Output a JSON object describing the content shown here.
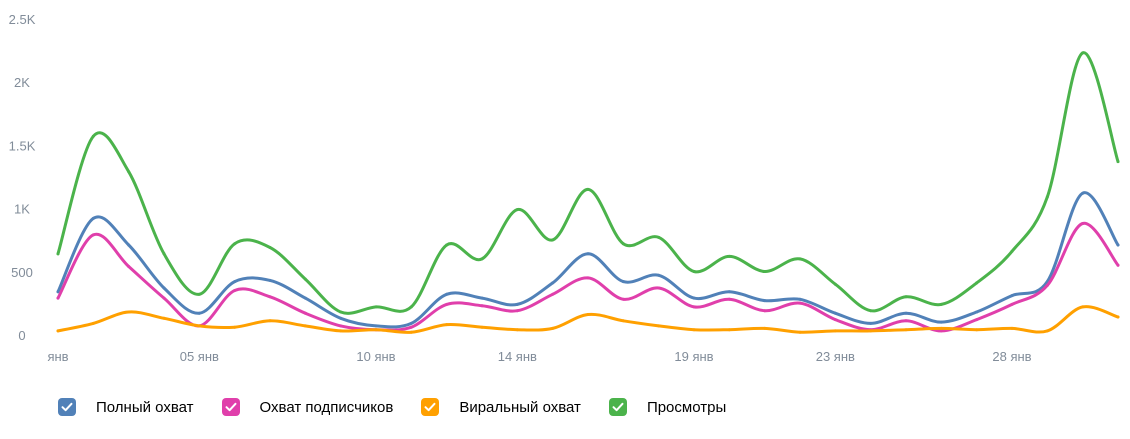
{
  "chart_data": {
    "type": "line",
    "x": [
      "01 янв",
      "02 янв",
      "03 янв",
      "04 янв",
      "05 янв",
      "06 янв",
      "07 янв",
      "08 янв",
      "09 янв",
      "10 янв",
      "11 янв",
      "12 янв",
      "13 янв",
      "14 янв",
      "15 янв",
      "16 янв",
      "17 янв",
      "18 янв",
      "19 янв",
      "20 янв",
      "21 янв",
      "22 янв",
      "23 янв",
      "24 янв",
      "25 янв",
      "26 янв",
      "27 янв",
      "28 янв",
      "29 янв",
      "30 янв",
      "31 янв"
    ],
    "x_tick_labels": [
      {
        "index": 0,
        "label": "янв"
      },
      {
        "index": 4,
        "label": "05 янв"
      },
      {
        "index": 9,
        "label": "10 янв"
      },
      {
        "index": 13,
        "label": "14 янв"
      },
      {
        "index": 18,
        "label": "19 янв"
      },
      {
        "index": 22,
        "label": "23 янв"
      },
      {
        "index": 27,
        "label": "28 янв"
      }
    ],
    "y_ticks": [
      {
        "value": 0,
        "label": "0"
      },
      {
        "value": 500,
        "label": "500"
      },
      {
        "value": 1000,
        "label": "1K"
      },
      {
        "value": 1500,
        "label": "1.5K"
      },
      {
        "value": 2000,
        "label": "2K"
      },
      {
        "value": 2500,
        "label": "2.5K"
      }
    ],
    "ylim": [
      0,
      2500
    ],
    "grid": false,
    "legend_position": "bottom-left",
    "series": [
      {
        "name": "Полный охват",
        "color": "#5181b8",
        "values": [
          350,
          930,
          720,
          380,
          180,
          430,
          440,
          300,
          140,
          80,
          100,
          330,
          300,
          250,
          420,
          650,
          430,
          480,
          300,
          350,
          280,
          290,
          180,
          100,
          180,
          110,
          190,
          320,
          430,
          1130,
          720
        ]
      },
      {
        "name": "Охват подписчиков",
        "color": "#e03fab",
        "values": [
          300,
          800,
          550,
          300,
          80,
          360,
          310,
          180,
          80,
          50,
          70,
          250,
          240,
          200,
          330,
          460,
          290,
          380,
          230,
          290,
          200,
          260,
          130,
          50,
          120,
          40,
          130,
          250,
          400,
          890,
          560
        ]
      },
      {
        "name": "Виральный охват",
        "color": "#ffa000",
        "values": [
          40,
          100,
          190,
          140,
          80,
          70,
          120,
          80,
          40,
          50,
          30,
          90,
          70,
          50,
          60,
          170,
          120,
          80,
          50,
          50,
          60,
          30,
          40,
          40,
          50,
          60,
          50,
          60,
          40,
          230,
          150
        ]
      },
      {
        "name": "Просмотры",
        "color": "#4bb34b",
        "values": [
          650,
          1580,
          1300,
          650,
          330,
          730,
          700,
          450,
          190,
          230,
          230,
          720,
          610,
          1000,
          760,
          1160,
          730,
          780,
          510,
          630,
          510,
          610,
          410,
          200,
          310,
          250,
          420,
          670,
          1100,
          2240,
          1380
        ]
      }
    ]
  }
}
